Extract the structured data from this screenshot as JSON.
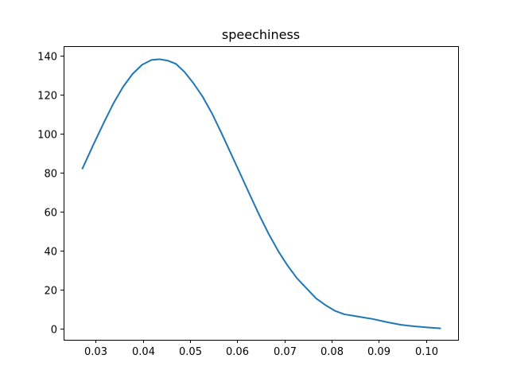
{
  "chart_data": {
    "type": "line",
    "title": "speechiness",
    "xlabel": "",
    "ylabel": "",
    "xlim": [
      0.0232,
      0.1068
    ],
    "ylim": [
      -5.9,
      144.9
    ],
    "grid": false,
    "legend": "none",
    "x_ticks": [
      {
        "value": 0.03,
        "label": "0.03"
      },
      {
        "value": 0.04,
        "label": "0.04"
      },
      {
        "value": 0.05,
        "label": "0.05"
      },
      {
        "value": 0.06,
        "label": "0.06"
      },
      {
        "value": 0.07,
        "label": "0.07"
      },
      {
        "value": 0.08,
        "label": "0.08"
      },
      {
        "value": 0.09,
        "label": "0.09"
      },
      {
        "value": 0.1,
        "label": "0.10"
      }
    ],
    "y_ticks": [
      {
        "value": 0,
        "label": "0"
      },
      {
        "value": 20,
        "label": "20"
      },
      {
        "value": 40,
        "label": "40"
      },
      {
        "value": 60,
        "label": "60"
      },
      {
        "value": 80,
        "label": "80"
      },
      {
        "value": 100,
        "label": "100"
      },
      {
        "value": 120,
        "label": "120"
      },
      {
        "value": 140,
        "label": "140"
      }
    ],
    "series": [
      {
        "color": "#1f77b4",
        "x": [
          0.0272,
          0.0295,
          0.0317,
          0.0338,
          0.0358,
          0.0378,
          0.0398,
          0.0418,
          0.0435,
          0.0452,
          0.046,
          0.047,
          0.0488,
          0.0507,
          0.0527,
          0.0547,
          0.0567,
          0.0587,
          0.0607,
          0.0627,
          0.0647,
          0.0667,
          0.0687,
          0.0707,
          0.0727,
          0.0747,
          0.0767,
          0.0787,
          0.0807,
          0.0827,
          0.0847,
          0.0867,
          0.0887,
          0.09,
          0.0917,
          0.0947,
          0.0977,
          0.1007,
          0.103
        ],
        "y": [
          82.1,
          94.3,
          105.5,
          115.7,
          124.0,
          130.6,
          135.3,
          137.8,
          138.2,
          137.5,
          136.8,
          135.8,
          131.7,
          125.9,
          118.8,
          110.1,
          100.0,
          89.5,
          79.0,
          68.4,
          58.0,
          48.3,
          39.6,
          32.1,
          25.6,
          20.5,
          15.4,
          11.9,
          9.0,
          7.2,
          6.4,
          5.6,
          4.8,
          4.1,
          3.2,
          1.8,
          1.0,
          0.4,
          0.0
        ]
      }
    ]
  }
}
